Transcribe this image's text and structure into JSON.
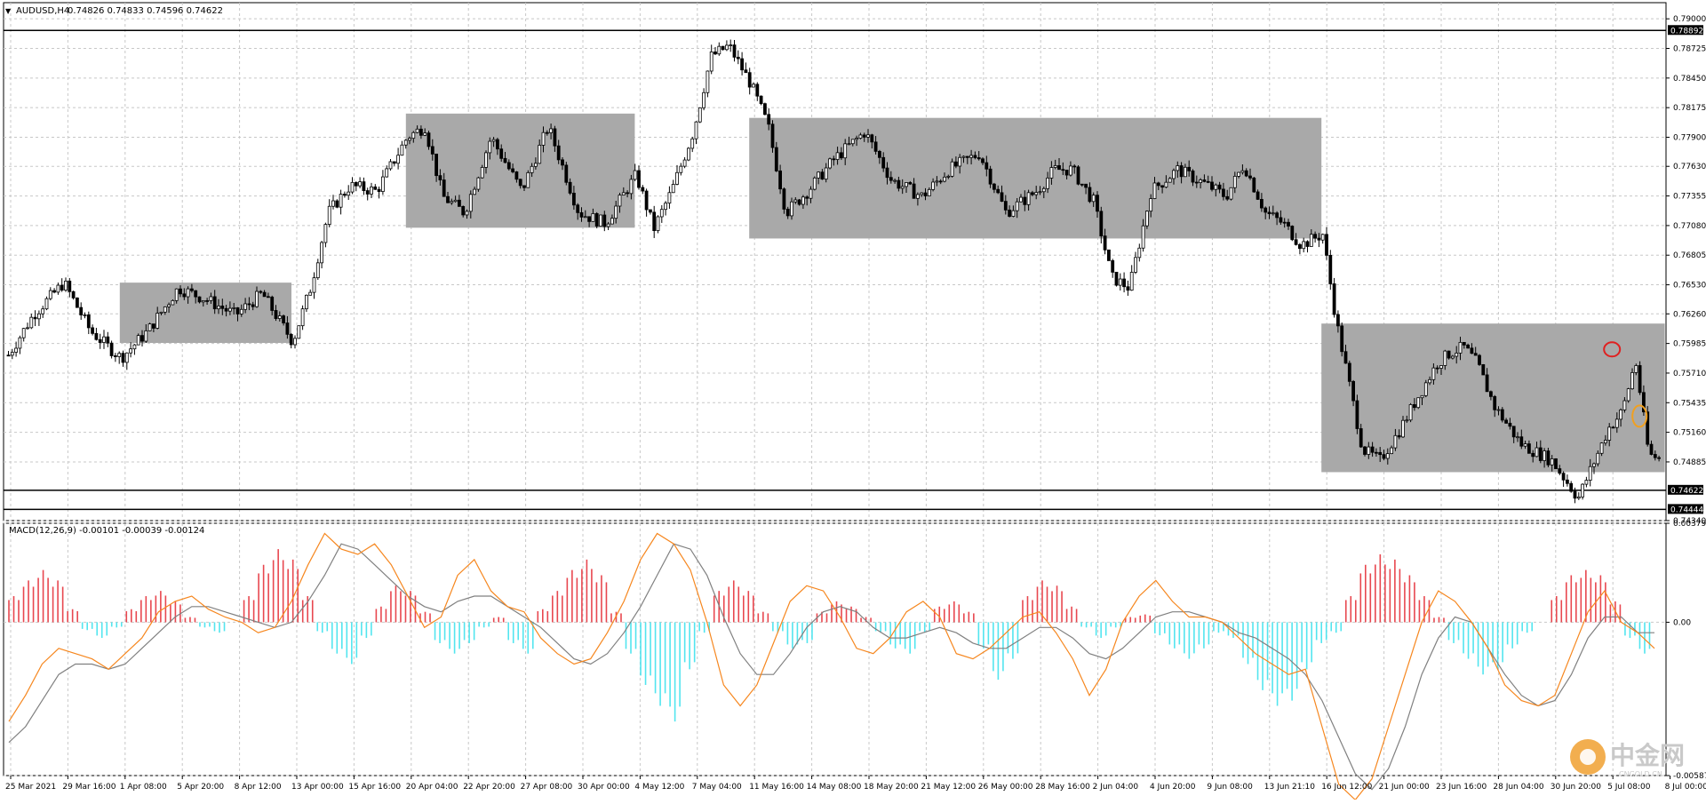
{
  "header": {
    "symbol_label": "AUDUSD,H4",
    "ohlc_label": "0.74826 0.74833 0.74596 0.74622"
  },
  "macd_header": {
    "label": "MACD(12,26,9) -0.00101 -0.00039 -0.00124"
  },
  "price_axis": {
    "ticks": [
      "0.79000",
      "0.78725",
      "0.78450",
      "0.78175",
      "0.77900",
      "0.77630",
      "0.77355",
      "0.77080",
      "0.76805",
      "0.76530",
      "0.76260",
      "0.75985",
      "0.75710",
      "0.75435",
      "0.75160",
      "0.74885",
      "0.74340"
    ],
    "tick_values": [
      0.79,
      0.78725,
      0.7845,
      0.78175,
      0.779,
      0.7763,
      0.77355,
      0.7708,
      0.76805,
      0.7653,
      0.7626,
      0.75985,
      0.7571,
      0.75435,
      0.7516,
      0.74885,
      0.7434
    ],
    "current_price_tag": "0.74622",
    "high_tag": "0.78892",
    "low_tag": "0.74444"
  },
  "macd_axis": {
    "ticks": [
      "0.00379",
      "0.00",
      "-0.00587"
    ],
    "tick_values": [
      0.00379,
      0,
      -0.00587
    ]
  },
  "time_axis": {
    "labels": [
      "25 Mar 2021",
      "29 Mar 16:00",
      "1 Apr 08:00",
      "5 Apr 20:00",
      "8 Apr 12:00",
      "13 Apr 00:00",
      "15 Apr 16:00",
      "20 Apr 04:00",
      "22 Apr 20:00",
      "27 Apr 08:00",
      "30 Apr 00:00",
      "4 May 12:00",
      "7 May 04:00",
      "11 May 16:00",
      "14 May 08:00",
      "18 May 20:00",
      "21 May 12:00",
      "26 May 00:00",
      "28 May 16:00",
      "2 Jun 04:00",
      "4 Jun 20:00",
      "9 Jun 08:00",
      "13 Jun 21:10",
      "16 Jun 12:00",
      "21 Jun 00:00",
      "23 Jun 16:00",
      "28 Jun 04:00",
      "30 Jun 20:00",
      "5 Jul 08:00",
      "8 Jul 00:00"
    ]
  },
  "watermark": {
    "brand": "中金网",
    "sub": "CNGOLD.CN"
  },
  "colors": {
    "candle": "#000000",
    "range_box": "#a9a9a9",
    "macd_hist_up": "#e8474f",
    "macd_hist_down": "#52e5ef",
    "macd_line": "#f6871f",
    "signal_line": "#808080",
    "marker_red": "#e02020",
    "marker_orange": "#f0a020"
  },
  "chart_data": [
    {
      "type": "candlestick",
      "symbol": "AUDUSD",
      "timeframe": "H4",
      "ylim": [
        0.7434,
        0.7915
      ],
      "range_boxes": [
        {
          "from": "1 Apr 00:00",
          "to": "13 Apr 20:00",
          "top": 0.7655,
          "bottom": 0.7599
        },
        {
          "from": "19 Apr 12:00",
          "to": "4 May 12:00",
          "top": 0.7812,
          "bottom": 0.7706
        },
        {
          "from": "11 May 12:00",
          "to": "16 Jun 08:00",
          "top": 0.7808,
          "bottom": 0.7696
        },
        {
          "from": "16 Jun 08:00",
          "to": "8 Jul 00:00",
          "top": 0.7617,
          "bottom": 0.7479
        }
      ],
      "horizontal_lines": [
        0.78892,
        0.74622,
        0.74444
      ],
      "markers": [
        {
          "shape": "circle",
          "color": "red",
          "at": "5 Jul",
          "price": 0.7593
        },
        {
          "shape": "ellipse",
          "color": "orange",
          "at": "7 Jul",
          "price": 0.7531
        }
      ],
      "anchors": [
        {
          "at": "25 Mar 2021",
          "price": 0.7585
        },
        {
          "at": "25 Mar 2021",
          "price": 0.7625
        },
        {
          "at": "29 Mar 16:00",
          "price": 0.7655
        },
        {
          "at": "29 Mar 16:00",
          "price": 0.761
        },
        {
          "at": "1 Apr 00:00",
          "price": 0.7585
        },
        {
          "at": "1 Apr 08:00",
          "price": 0.761
        },
        {
          "at": "5 Apr 20:00",
          "price": 0.765
        },
        {
          "at": "5 Apr 20:00",
          "price": 0.764
        },
        {
          "at": "8 Apr 12:00",
          "price": 0.7625
        },
        {
          "at": "8 Apr 12:00",
          "price": 0.7645
        },
        {
          "at": "13 Apr 00:00",
          "price": 0.76
        },
        {
          "at": "13 Apr 00:00",
          "price": 0.765
        },
        {
          "at": "13 Apr 00:00",
          "price": 0.772
        },
        {
          "at": "15 Apr 16:00",
          "price": 0.7745
        },
        {
          "at": "15 Apr 16:00",
          "price": 0.774
        },
        {
          "at": "20 Apr 04:00",
          "price": 0.779
        },
        {
          "at": "20 Apr 04:00",
          "price": 0.78
        },
        {
          "at": "20 Apr 04:00",
          "price": 0.7735
        },
        {
          "at": "22 Apr 20:00",
          "price": 0.772
        },
        {
          "at": "22 Apr 20:00",
          "price": 0.779
        },
        {
          "at": "27 Apr 08:00",
          "price": 0.774
        },
        {
          "at": "27 Apr 08:00",
          "price": 0.78
        },
        {
          "at": "30 Apr 00:00",
          "price": 0.772
        },
        {
          "at": "30 Apr 00:00",
          "price": 0.771
        },
        {
          "at": "4 May 12:00",
          "price": 0.7755
        },
        {
          "at": "4 May 12:00",
          "price": 0.7705
        },
        {
          "at": "4 May 12:00",
          "price": 0.774
        },
        {
          "at": "7 May 04:00",
          "price": 0.7795
        },
        {
          "at": "7 May 04:00",
          "price": 0.7865
        },
        {
          "at": "7 May 04:00",
          "price": 0.7875
        },
        {
          "at": "11 May 16:00",
          "price": 0.784
        },
        {
          "at": "11 May 16:00",
          "price": 0.78
        },
        {
          "at": "11 May 16:00",
          "price": 0.772
        },
        {
          "at": "14 May 08:00",
          "price": 0.774
        },
        {
          "at": "14 May 08:00",
          "price": 0.777
        },
        {
          "at": "18 May 20:00",
          "price": 0.7795
        },
        {
          "at": "18 May 20:00",
          "price": 0.775
        },
        {
          "at": "21 May 12:00",
          "price": 0.7735
        },
        {
          "at": "21 May 12:00",
          "price": 0.776
        },
        {
          "at": "26 May 00:00",
          "price": 0.7775
        },
        {
          "at": "26 May 00:00",
          "price": 0.772
        },
        {
          "at": "28 May 16:00",
          "price": 0.774
        },
        {
          "at": "28 May 16:00",
          "price": 0.776
        },
        {
          "at": "28 May 16:00",
          "price": 0.776
        },
        {
          "at": "2 Jun 04:00",
          "price": 0.773
        },
        {
          "at": "2 Jun 04:00",
          "price": 0.766
        },
        {
          "at": "2 Jun 04:00",
          "price": 0.765
        },
        {
          "at": "4 Jun 20:00",
          "price": 0.774
        },
        {
          "at": "4 Jun 20:00",
          "price": 0.776
        },
        {
          "at": "9 Jun 08:00",
          "price": 0.7745
        },
        {
          "at": "9 Jun 08:00",
          "price": 0.7735
        },
        {
          "at": "9 Jun 08:00",
          "price": 0.7765
        },
        {
          "at": "13 Jun 21:10",
          "price": 0.772
        },
        {
          "at": "13 Jun 21:10",
          "price": 0.771
        },
        {
          "at": "13 Jun 21:10",
          "price": 0.769
        },
        {
          "at": "16 Jun 12:00",
          "price": 0.77
        },
        {
          "at": "16 Jun 12:00",
          "price": 0.762
        },
        {
          "at": "16 Jun 12:00",
          "price": 0.756
        },
        {
          "at": "16 Jun 12:00",
          "price": 0.75
        },
        {
          "at": "21 Jun 00:00",
          "price": 0.749
        },
        {
          "at": "21 Jun 00:00",
          "price": 0.7515
        },
        {
          "at": "21 Jun 00:00",
          "price": 0.7545
        },
        {
          "at": "23 Jun 16:00",
          "price": 0.758
        },
        {
          "at": "23 Jun 16:00",
          "price": 0.759
        },
        {
          "at": "23 Jun 16:00",
          "price": 0.7595
        },
        {
          "at": "23 Jun 16:00",
          "price": 0.758
        },
        {
          "at": "28 Jun 04:00",
          "price": 0.754
        },
        {
          "at": "28 Jun 04:00",
          "price": 0.7505
        },
        {
          "at": "30 Jun 20:00",
          "price": 0.749
        },
        {
          "at": "30 Jun 20:00",
          "price": 0.7455
        },
        {
          "at": "5 Jul 08:00",
          "price": 0.752
        },
        {
          "at": "5 Jul 08:00",
          "price": 0.7535
        },
        {
          "at": "5 Jul 08:00",
          "price": 0.7583
        },
        {
          "at": "5 Jul 08:00",
          "price": 0.7495
        },
        {
          "at": "8 Jul 00:00",
          "price": 0.749
        },
        {
          "at": "8 Jul 00:00",
          "price": 0.7462
        }
      ]
    },
    {
      "type": "macd",
      "indicator": "MACD(12,26,9)",
      "values": {
        "macd": -0.00101,
        "signal": -0.00039,
        "histogram": -0.00124
      },
      "ylim": [
        -0.00587,
        0.00379
      ],
      "histogram": [
        0.001,
        0.0016,
        0.002,
        0.0016,
        0.0005,
        -0.0003,
        -0.0006,
        -0.0002,
        0.0005,
        0.001,
        0.0012,
        0.0008,
        0.0002,
        -0.0002,
        -0.0004,
        0.0,
        0.001,
        0.0022,
        0.0028,
        0.0024,
        0.001,
        -0.0004,
        -0.0012,
        -0.0016,
        -0.0006,
        0.0006,
        0.0014,
        0.0012,
        0.0004,
        -0.0008,
        -0.0012,
        -0.0008,
        -0.0002,
        0.0002,
        -0.0008,
        -0.0012,
        0.0005,
        0.0012,
        0.002,
        0.0024,
        0.0018,
        0.0004,
        -0.0012,
        -0.0024,
        -0.0032,
        -0.0038,
        -0.0018,
        -0.0004,
        0.0012,
        0.0016,
        0.0012,
        0.0004,
        -0.0004,
        -0.001,
        -0.0008,
        0.0004,
        0.0008,
        0.0006,
        0.0002,
        -0.0004,
        -0.001,
        -0.0012,
        -0.0004,
        0.0006,
        0.0008,
        0.0004,
        -0.001,
        -0.0022,
        -0.0014,
        0.001,
        0.0016,
        0.0014,
        0.0006,
        -0.0002,
        -0.0006,
        -0.0002,
        0.0002,
        0.0003,
        -0.0005,
        -0.001,
        -0.0014,
        -0.001,
        -0.0004,
        -0.0006,
        -0.0016,
        -0.0026,
        -0.0032,
        -0.003,
        -0.0018,
        -0.0008,
        -0.0004,
        0.001,
        0.0022,
        0.0026,
        0.0024,
        0.0018,
        0.001,
        0.0002,
        -0.0008,
        -0.0014,
        -0.002,
        -0.0018,
        -0.001,
        -0.0004,
        0.0,
        0.001,
        0.0018,
        0.002,
        0.0018,
        0.0008,
        -0.0006,
        -0.0012
      ],
      "macd_line": [
        -0.0038,
        -0.0028,
        -0.0016,
        -0.001,
        -0.0012,
        -0.0014,
        -0.0018,
        -0.0012,
        -0.0006,
        0.0004,
        0.0008,
        0.001,
        0.0005,
        0.0002,
        0.0,
        -0.0004,
        -0.0002,
        0.0008,
        0.0022,
        0.0034,
        0.0028,
        0.0026,
        0.003,
        0.0022,
        0.001,
        -0.0002,
        0.0002,
        0.0018,
        0.0024,
        0.0012,
        0.0006,
        0.0004,
        -0.0006,
        -0.0012,
        -0.0016,
        -0.0014,
        -0.0004,
        0.0008,
        0.0024,
        0.0034,
        0.003,
        0.002,
        0.0,
        -0.0024,
        -0.0032,
        -0.0024,
        -0.0008,
        0.0008,
        0.0014,
        0.0012,
        0.0002,
        -0.001,
        -0.0012,
        -0.0006,
        0.0004,
        0.0008,
        0.0002,
        -0.0012,
        -0.0014,
        -0.001,
        -0.0004,
        0.0002,
        0.0004,
        -0.0004,
        -0.0014,
        -0.0028,
        -0.0018,
        0.0,
        0.001,
        0.0016,
        0.0008,
        0.0002,
        0.0002,
        0.0,
        -0.0006,
        -0.0012,
        -0.0016,
        -0.002,
        -0.0018,
        -0.004,
        -0.0062,
        -0.0068,
        -0.006,
        -0.004,
        -0.002,
        0.0,
        0.0012,
        0.0008,
        0.0,
        -0.001,
        -0.0024,
        -0.003,
        -0.0032,
        -0.0028,
        -0.0012,
        0.0004,
        0.0012,
        0.0,
        -0.0004,
        -0.001
      ],
      "signal_line": [
        -0.0046,
        -0.004,
        -0.003,
        -0.002,
        -0.0016,
        -0.0016,
        -0.0018,
        -0.0016,
        -0.001,
        -0.0004,
        0.0002,
        0.0006,
        0.0006,
        0.0004,
        0.0002,
        0.0,
        -0.0002,
        0.0,
        0.0008,
        0.0018,
        0.003,
        0.0028,
        0.0022,
        0.0016,
        0.001,
        0.0006,
        0.0004,
        0.0008,
        0.001,
        0.001,
        0.0006,
        0.0002,
        -0.0002,
        -0.0008,
        -0.0014,
        -0.0016,
        -0.0012,
        -0.0004,
        0.0006,
        0.0018,
        0.003,
        0.0028,
        0.0018,
        0.0002,
        -0.0012,
        -0.002,
        -0.002,
        -0.0012,
        -0.0002,
        0.0004,
        0.0006,
        0.0004,
        -0.0002,
        -0.0006,
        -0.0006,
        -0.0004,
        -0.0002,
        -0.0004,
        -0.0008,
        -0.001,
        -0.001,
        -0.0006,
        -0.0002,
        -0.0002,
        -0.0006,
        -0.0012,
        -0.0014,
        -0.001,
        -0.0004,
        0.0002,
        0.0004,
        0.0004,
        0.0002,
        0.0,
        -0.0004,
        -0.0006,
        -0.001,
        -0.0014,
        -0.002,
        -0.003,
        -0.0044,
        -0.0058,
        -0.0064,
        -0.0056,
        -0.004,
        -0.002,
        -0.0006,
        0.0002,
        0.0,
        -0.001,
        -0.002,
        -0.0028,
        -0.0032,
        -0.003,
        -0.002,
        -0.0006,
        0.0002,
        0.0002,
        -0.0004,
        -0.0004
      ]
    }
  ]
}
